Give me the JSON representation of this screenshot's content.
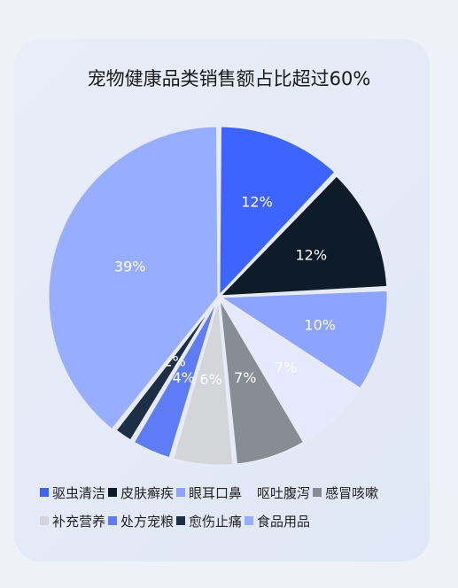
{
  "chart_data": {
    "type": "pie",
    "title": "宠物健康品类销售额占比超过60%",
    "categories": [
      "驱虫清洁",
      "皮肤癣疾",
      "眼耳口鼻",
      "呕吐腹泻",
      "感冒咳嗽",
      "补充营养",
      "处方宠粮",
      "愈伤止痛",
      "食品用品"
    ],
    "values": [
      12,
      12,
      10,
      7,
      7,
      6,
      4,
      2,
      39
    ],
    "labels": [
      "12%",
      "12%",
      "10%",
      "7%",
      "7%",
      "6%",
      "4%",
      "2%",
      "39%"
    ],
    "colors": [
      "#3d64ff",
      "#0e1c2a",
      "#8ca4ff",
      "#e4e9ff",
      "#868d95",
      "#d3d5d9",
      "#5d7cf5",
      "#1c2f45",
      "#97adff"
    ],
    "legend_position": "bottom"
  }
}
